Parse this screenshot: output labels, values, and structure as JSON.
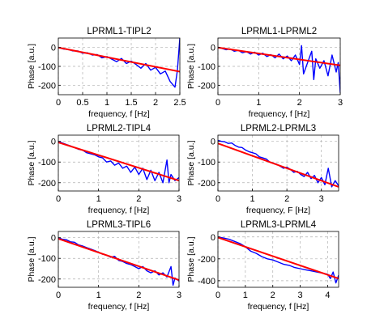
{
  "figure": {
    "layout": "3x2 grid of phase-vs-frequency subplots"
  },
  "colors": {
    "measured": "#0000ff",
    "fit": "#ff0000",
    "grid": "#b0b0b0",
    "axes": "#000000"
  },
  "chart_data": [
    {
      "type": "line",
      "title": "LPRML1-TIPL2",
      "xlabel": "frequency, f [Hz]",
      "ylabel": "Phase [a.u.]",
      "xlim": [
        0,
        2.5
      ],
      "ylim": [
        -250,
        50
      ],
      "xticks": [
        0,
        0.5,
        1,
        1.5,
        2,
        2.5
      ],
      "xtick_labels": [
        "0",
        "0.5",
        "1",
        "1.5",
        "2",
        "2.5"
      ],
      "yticks": [
        0,
        -100,
        -200
      ],
      "ytick_labels": [
        "0",
        "-100",
        "-200"
      ],
      "grid": true,
      "series": [
        {
          "x": [
            0,
            0.1,
            0.2,
            0.3,
            0.4,
            0.5,
            0.6,
            0.7,
            0.8,
            0.9,
            1,
            1.1,
            1.2,
            1.3,
            1.4,
            1.5,
            1.6,
            1.7,
            1.8,
            1.9,
            2,
            2.1,
            2.2,
            2.3,
            2.4,
            2.45,
            2.5
          ],
          "y": [
            0,
            -8,
            -10,
            -18,
            -18,
            -30,
            -28,
            -40,
            -38,
            -55,
            -48,
            -62,
            -75,
            -58,
            -85,
            -72,
            -90,
            -110,
            -85,
            -120,
            -105,
            -140,
            -125,
            -180,
            -210,
            -120,
            50
          ]
        },
        {
          "x": [
            0,
            2.5
          ],
          "y": [
            0,
            -128
          ]
        }
      ]
    },
    {
      "type": "line",
      "title": "LPRML1-LPRML2",
      "xlabel": "frequency, f [Hz]",
      "ylabel": "Phase [a.u.]",
      "xlim": [
        0,
        3
      ],
      "ylim": [
        -250,
        50
      ],
      "xticks": [
        0,
        1,
        2,
        3
      ],
      "xtick_labels": [
        "0",
        "1",
        "2",
        "3"
      ],
      "yticks": [
        0,
        -100,
        -200
      ],
      "ytick_labels": [
        "0",
        "-100",
        "-200"
      ],
      "grid": true,
      "series": [
        {
          "x": [
            0,
            0.1,
            0.2,
            0.3,
            0.4,
            0.5,
            0.6,
            0.7,
            0.8,
            0.9,
            1,
            1.1,
            1.2,
            1.3,
            1.4,
            1.5,
            1.6,
            1.7,
            1.8,
            1.9,
            2,
            2.05,
            2.1,
            2.2,
            2.3,
            2.35,
            2.4,
            2.5,
            2.6,
            2.7,
            2.8,
            2.9,
            2.95,
            3
          ],
          "y": [
            0,
            -5,
            -12,
            -8,
            -20,
            -15,
            -28,
            -22,
            -35,
            -25,
            -40,
            -30,
            -48,
            -38,
            -55,
            -35,
            -60,
            -45,
            -70,
            -40,
            -90,
            10,
            -140,
            -80,
            -20,
            -170,
            -60,
            -110,
            -70,
            -150,
            -40,
            -130,
            -80,
            -240
          ]
        },
        {
          "x": [
            0,
            3
          ],
          "y": [
            0,
            -95
          ]
        }
      ]
    },
    {
      "type": "line",
      "title": "LPRML2-TIPL4",
      "xlabel": "frequency, f [Hz]",
      "ylabel": "Phase [a.u.]",
      "xlim": [
        0,
        3
      ],
      "ylim": [
        -240,
        30
      ],
      "xticks": [
        0,
        1,
        2,
        3
      ],
      "xtick_labels": [
        "0",
        "1",
        "2",
        "3"
      ],
      "yticks": [
        0,
        -100,
        -200
      ],
      "ytick_labels": [
        "0",
        "-100",
        "-200"
      ],
      "grid": true,
      "series": [
        {
          "x": [
            0,
            0.1,
            0.2,
            0.3,
            0.4,
            0.5,
            0.6,
            0.7,
            0.8,
            0.9,
            1,
            1.1,
            1.2,
            1.3,
            1.4,
            1.5,
            1.6,
            1.7,
            1.8,
            1.9,
            2,
            2.1,
            2.2,
            2.3,
            2.4,
            2.5,
            2.6,
            2.7,
            2.75,
            2.8,
            2.9,
            3
          ],
          "y": [
            0,
            -8,
            -15,
            -22,
            -30,
            -38,
            -42,
            -55,
            -60,
            -65,
            -75,
            -80,
            -100,
            -95,
            -115,
            -105,
            -130,
            -120,
            -150,
            -125,
            -160,
            -130,
            -185,
            -140,
            -190,
            -150,
            -200,
            -90,
            -200,
            -160,
            -190,
            -175
          ]
        },
        {
          "x": [
            0,
            3
          ],
          "y": [
            -5,
            -190
          ]
        }
      ]
    },
    {
      "type": "line",
      "title": "LPRML2-LPRML3",
      "xlabel": "frequency, F [Hz]",
      "ylabel": "Phase [a.u.]",
      "xlim": [
        0,
        3.5
      ],
      "ylim": [
        -240,
        30
      ],
      "xticks": [
        0,
        1,
        2,
        3
      ],
      "xtick_labels": [
        "0",
        "1",
        "2",
        "3"
      ],
      "yticks": [
        0,
        -100,
        -200
      ],
      "ytick_labels": [
        "0",
        "-100",
        "-200"
      ],
      "grid": true,
      "series": [
        {
          "x": [
            0,
            0.1,
            0.2,
            0.3,
            0.4,
            0.5,
            0.6,
            0.7,
            0.8,
            0.9,
            1,
            1.1,
            1.2,
            1.3,
            1.4,
            1.5,
            1.6,
            1.7,
            1.8,
            1.9,
            2,
            2.1,
            2.2,
            2.3,
            2.4,
            2.5,
            2.6,
            2.7,
            2.8,
            2.9,
            3,
            3.1,
            3.2,
            3.3,
            3.4,
            3.5
          ],
          "y": [
            5,
            0,
            -2,
            -10,
            -8,
            -20,
            -28,
            -30,
            -42,
            -50,
            -55,
            -60,
            -75,
            -80,
            -85,
            -100,
            -105,
            -110,
            -120,
            -130,
            -125,
            -135,
            -150,
            -145,
            -160,
            -170,
            -150,
            -180,
            -165,
            -200,
            -175,
            -210,
            -130,
            -220,
            -190,
            -215
          ]
        },
        {
          "x": [
            0,
            3.5
          ],
          "y": [
            -10,
            -220
          ]
        }
      ]
    },
    {
      "type": "line",
      "title": "LPRML3-TIPL6",
      "xlabel": "frequency, f [Hz]",
      "ylabel": "Phase [a.u.]",
      "xlim": [
        0,
        3
      ],
      "ylim": [
        -240,
        30
      ],
      "xticks": [
        0,
        1,
        2,
        3
      ],
      "xtick_labels": [
        "0",
        "1",
        "2",
        "3"
      ],
      "yticks": [
        0,
        -100,
        -200
      ],
      "ytick_labels": [
        "0",
        "-100",
        "-200"
      ],
      "grid": true,
      "series": [
        {
          "x": [
            0,
            0.1,
            0.2,
            0.3,
            0.4,
            0.5,
            0.6,
            0.7,
            0.8,
            0.9,
            1,
            1.1,
            1.2,
            1.3,
            1.4,
            1.5,
            1.6,
            1.7,
            1.8,
            1.9,
            2,
            2.1,
            2.2,
            2.3,
            2.4,
            2.5,
            2.6,
            2.7,
            2.8,
            2.85,
            2.9,
            3
          ],
          "y": [
            0,
            -8,
            -10,
            -20,
            -22,
            -35,
            -40,
            -48,
            -55,
            -62,
            -70,
            -80,
            -85,
            -95,
            -90,
            -110,
            -115,
            -125,
            -130,
            -140,
            -150,
            -140,
            -160,
            -170,
            -160,
            -180,
            -170,
            -190,
            -140,
            -230,
            -195,
            -210
          ]
        },
        {
          "x": [
            0,
            3
          ],
          "y": [
            -5,
            -205
          ]
        }
      ]
    },
    {
      "type": "line",
      "title": "LPRML3-LPRML4",
      "xlabel": "frequency, f [Hz]",
      "ylabel": "Phase [a.u.]",
      "xlim": [
        0,
        4.4
      ],
      "ylim": [
        -460,
        50
      ],
      "xticks": [
        0,
        1,
        2,
        3,
        4
      ],
      "xtick_labels": [
        "0",
        "1",
        "2",
        "3",
        "4"
      ],
      "yticks": [
        0,
        -200,
        -400
      ],
      "ytick_labels": [
        "0",
        "-200",
        "-400"
      ],
      "grid": true,
      "series": [
        {
          "x": [
            0,
            0.2,
            0.4,
            0.6,
            0.8,
            1,
            1.2,
            1.4,
            1.6,
            1.8,
            2,
            2.2,
            2.4,
            2.6,
            2.8,
            3,
            3.2,
            3.4,
            3.6,
            3.8,
            4,
            4.1,
            4.2,
            4.3,
            4.4
          ],
          "y": [
            0,
            -10,
            -20,
            -40,
            -60,
            -90,
            -130,
            -150,
            -180,
            -200,
            -210,
            -230,
            -250,
            -260,
            -280,
            -290,
            -300,
            -310,
            -320,
            -330,
            -340,
            -380,
            -320,
            -420,
            -350
          ]
        },
        {
          "x": [
            0,
            4.4
          ],
          "y": [
            -5,
            -380
          ]
        }
      ]
    }
  ]
}
